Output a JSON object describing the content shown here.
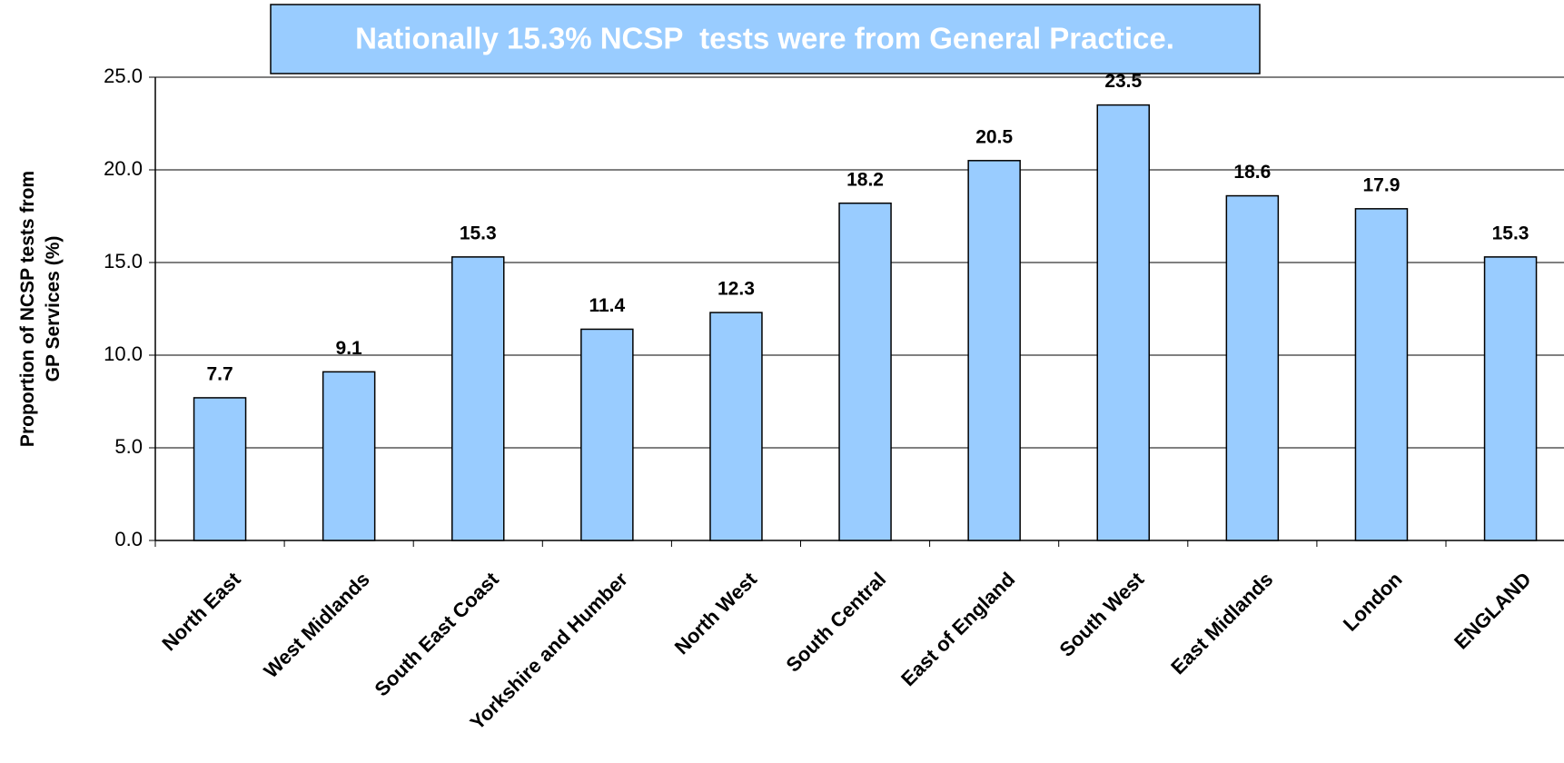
{
  "chart_data": {
    "type": "bar",
    "title": "Nationally 15.3% NCSP  tests were from General Practice.",
    "ylabel": [
      "Proportion of NCSP tests from",
      "GP Services (%)"
    ],
    "categories": [
      "North East",
      "West Midlands",
      "South East Coast",
      "Yorkshire and Humber",
      "North West",
      "South Central",
      "East of England",
      "South West",
      "East Midlands",
      "London",
      "ENGLAND"
    ],
    "values": [
      7.7,
      9.1,
      15.3,
      11.4,
      12.3,
      18.2,
      20.5,
      23.5,
      18.6,
      17.9,
      15.3
    ],
    "color": "#99ccff",
    "ylim": [
      0,
      25
    ],
    "yticks": [
      {
        "value": 0,
        "label": "0.0"
      },
      {
        "value": 5,
        "label": "5.0"
      },
      {
        "value": 10,
        "label": "10.0"
      },
      {
        "value": 15,
        "label": "15.0"
      },
      {
        "value": 20,
        "label": "20.0"
      },
      {
        "value": 25,
        "label": "25.0"
      }
    ],
    "grid": true
  }
}
